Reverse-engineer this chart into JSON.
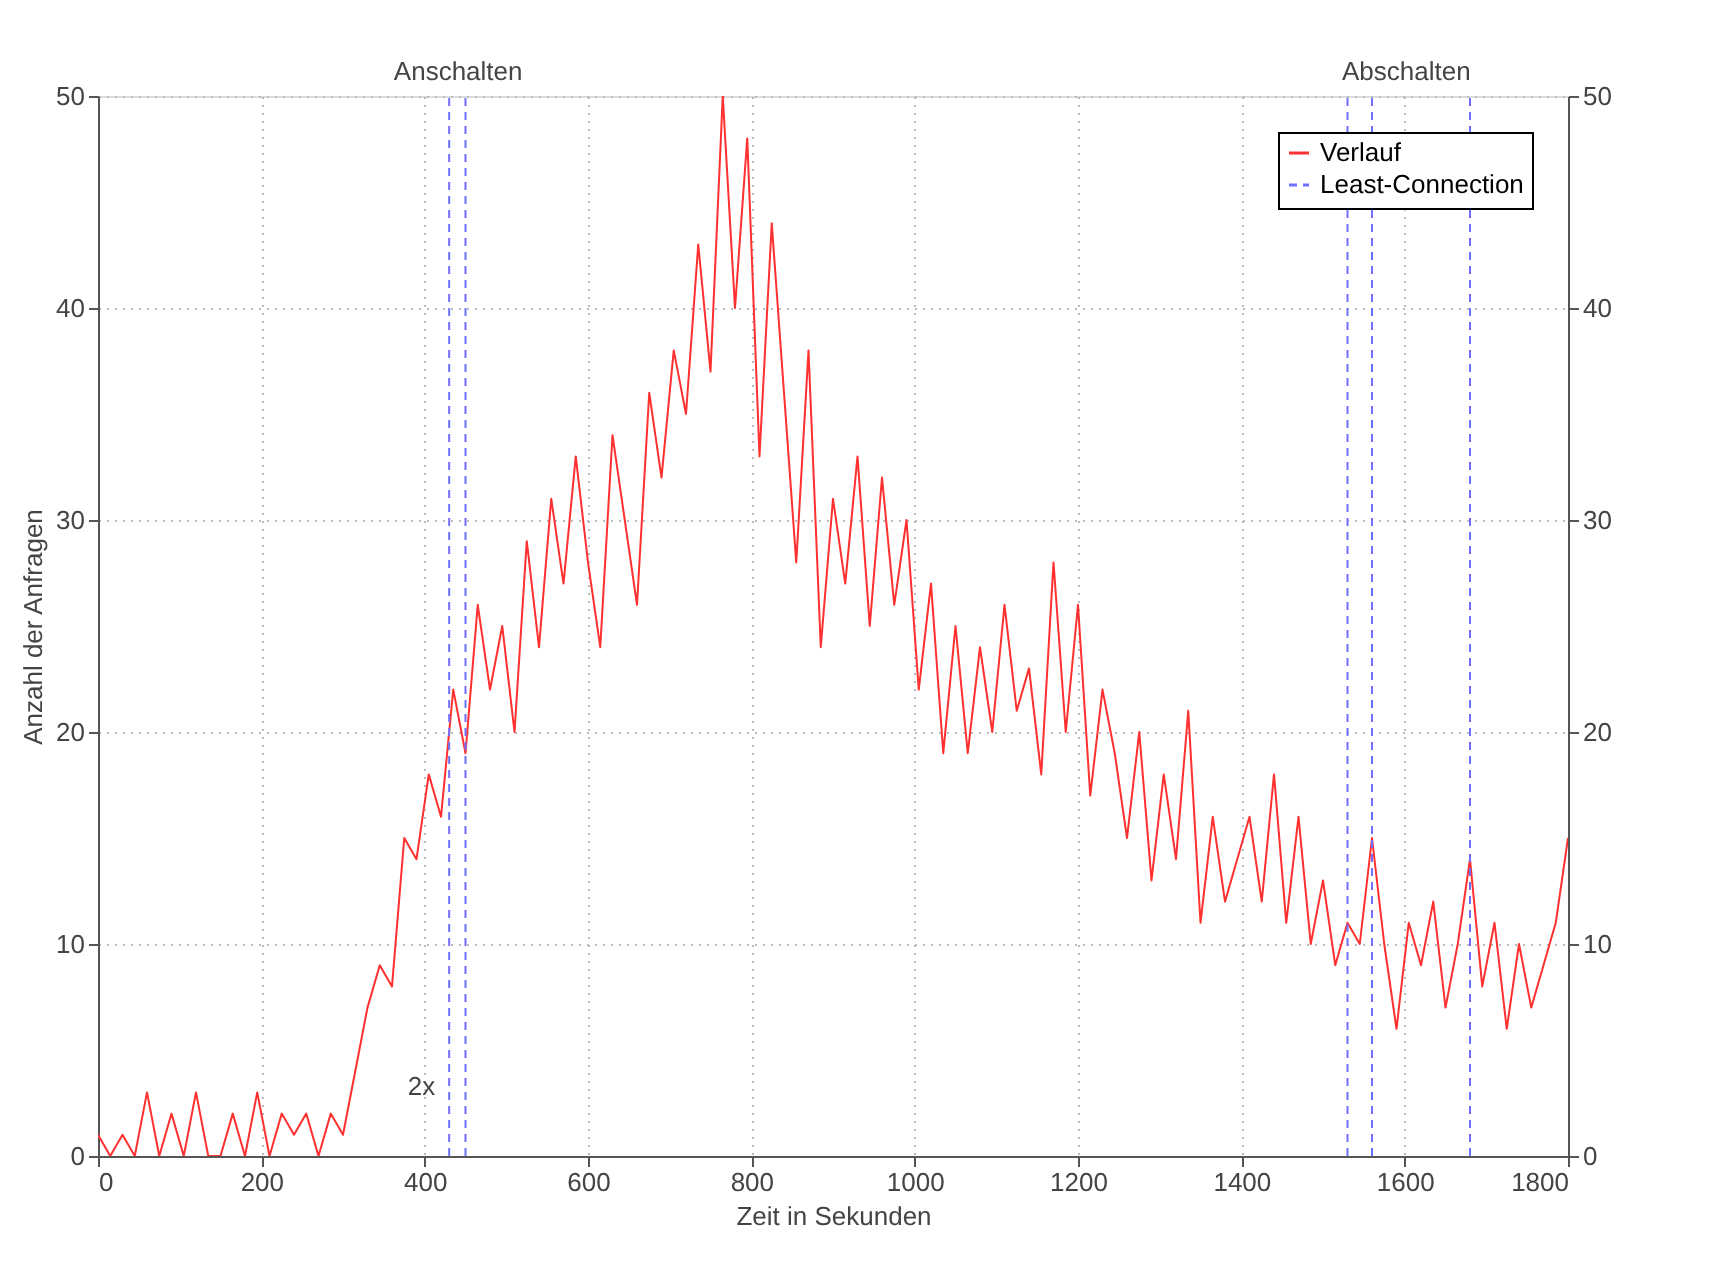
{
  "chart_data": {
    "type": "line",
    "xlabel": "Zeit in Sekunden",
    "ylabel": "Anzahl der Anfragen",
    "xlim": [
      0,
      1800
    ],
    "xticks": [
      0,
      200,
      400,
      600,
      800,
      1000,
      1200,
      1400,
      1600,
      1800
    ],
    "ylim": [
      0,
      50
    ],
    "yticks": [
      0,
      10,
      20,
      30,
      40,
      50
    ],
    "y2lim": [
      0,
      50
    ],
    "y2ticks": [
      0,
      10,
      20,
      30,
      40,
      50
    ],
    "grid": true,
    "legend": "top right",
    "line_style": "solid",
    "marker": "none",
    "x": [
      0,
      15,
      30,
      45,
      60,
      75,
      90,
      105,
      120,
      135,
      150,
      165,
      180,
      195,
      210,
      225,
      240,
      255,
      270,
      285,
      300,
      315,
      330,
      345,
      360,
      375,
      390,
      405,
      420,
      435,
      450,
      465,
      480,
      495,
      510,
      525,
      540,
      555,
      570,
      585,
      600,
      615,
      630,
      645,
      660,
      675,
      690,
      705,
      720,
      735,
      750,
      765,
      780,
      795,
      810,
      825,
      840,
      855,
      870,
      885,
      900,
      915,
      930,
      945,
      960,
      975,
      990,
      1005,
      1020,
      1035,
      1050,
      1065,
      1080,
      1095,
      1110,
      1125,
      1140,
      1155,
      1170,
      1185,
      1200,
      1215,
      1230,
      1245,
      1260,
      1275,
      1290,
      1305,
      1320,
      1335,
      1350,
      1365,
      1380,
      1395,
      1410,
      1425,
      1440,
      1455,
      1470,
      1485,
      1500,
      1515,
      1530,
      1545,
      1560,
      1575,
      1590,
      1605,
      1620,
      1635,
      1650,
      1665,
      1680,
      1695,
      1710,
      1725,
      1740,
      1755,
      1770,
      1785,
      1800
    ],
    "series": [
      {
        "name": "Verlauf",
        "color": "#ff3030",
        "values": [
          1,
          0,
          1,
          0,
          3,
          0,
          2,
          0,
          3,
          0,
          0,
          2,
          0,
          3,
          0,
          2,
          1,
          2,
          0,
          2,
          1,
          4,
          7,
          9,
          8,
          15,
          14,
          18,
          16,
          22,
          19,
          26,
          22,
          25,
          20,
          29,
          24,
          31,
          27,
          33,
          28,
          24,
          34,
          30,
          26,
          36,
          32,
          38,
          35,
          43,
          37,
          50,
          40,
          48,
          33,
          44,
          36,
          28,
          38,
          24,
          31,
          27,
          33,
          25,
          32,
          26,
          30,
          22,
          27,
          19,
          25,
          19,
          24,
          20,
          26,
          21,
          23,
          18,
          28,
          20,
          26,
          17,
          22,
          19,
          15,
          20,
          13,
          18,
          14,
          21,
          11,
          16,
          12,
          14,
          16,
          12,
          18,
          11,
          16,
          10,
          13,
          9,
          11,
          10,
          15,
          10,
          6,
          11,
          9,
          12,
          7,
          10,
          14,
          8,
          11,
          6,
          10,
          7,
          9,
          11,
          15
        ]
      },
      {
        "name": "Least-Connection",
        "color": "#7070ff",
        "line_style": "dashed",
        "x": [
          430,
          430,
          440,
          450,
          450,
          990,
          1530,
          1530,
          1545,
          1560,
          1560,
          1620,
          1680,
          1680
        ],
        "values": [
          0,
          50,
          null,
          0,
          50,
          null,
          0,
          50,
          null,
          0,
          50,
          null,
          0,
          50
        ]
      }
    ],
    "annotations": [
      "Anschalten",
      "Abschalten",
      "2x"
    ]
  }
}
